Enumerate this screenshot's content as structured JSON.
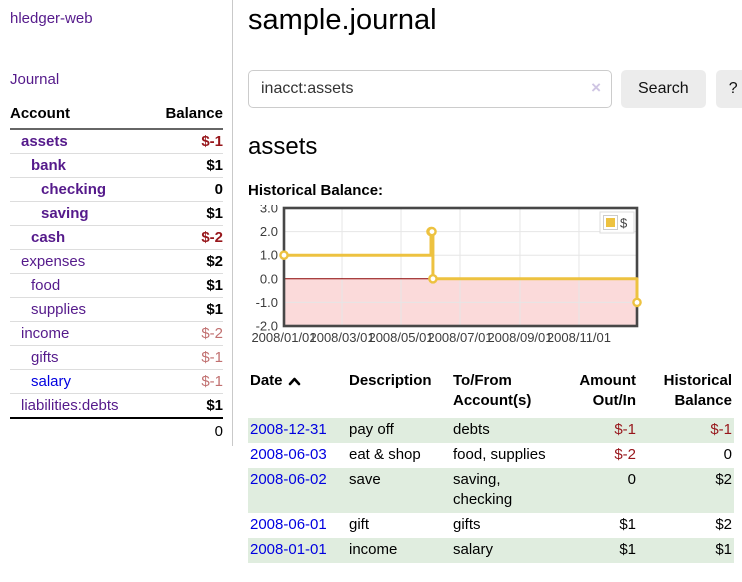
{
  "app": {
    "brand": "hledger-web",
    "nav_journal": "Journal"
  },
  "colors": {
    "link_purple": "#551a8b",
    "link_blue": "#0000e0",
    "negative_strong": "#97161b",
    "negative_soft": "#c17070",
    "row_green": "#e0eddf",
    "series_yellow": "#edc240",
    "negative_region_pink": "#fbdada",
    "zero_line": "#8b0000"
  },
  "sidebar": {
    "header": {
      "account": "Account",
      "balance": "Balance"
    },
    "accounts": [
      {
        "name": "assets",
        "balance": "$-1",
        "level": 0,
        "bold": true,
        "neg": "strong",
        "link": "purple"
      },
      {
        "name": "bank",
        "balance": "$1",
        "level": 1,
        "bold": true,
        "neg": "none",
        "link": "purple"
      },
      {
        "name": "checking",
        "balance": "0",
        "level": 2,
        "bold": true,
        "neg": "none",
        "link": "purple"
      },
      {
        "name": "saving",
        "balance": "$1",
        "level": 2,
        "bold": true,
        "neg": "none",
        "link": "purple"
      },
      {
        "name": "cash",
        "balance": "$-2",
        "level": 1,
        "bold": true,
        "neg": "strong",
        "link": "purple"
      },
      {
        "name": "expenses",
        "balance": "$2",
        "level": 0,
        "bold": false,
        "neg": "none",
        "link": "purple"
      },
      {
        "name": "food",
        "balance": "$1",
        "level": 1,
        "bold": false,
        "neg": "none",
        "link": "purple"
      },
      {
        "name": "supplies",
        "balance": "$1",
        "level": 1,
        "bold": false,
        "neg": "none",
        "link": "purple"
      },
      {
        "name": "income",
        "balance": "$-2",
        "level": 0,
        "bold": false,
        "neg": "soft",
        "link": "purple"
      },
      {
        "name": "gifts",
        "balance": "$-1",
        "level": 1,
        "bold": false,
        "neg": "soft",
        "link": "purple"
      },
      {
        "name": "salary",
        "balance": "$-1",
        "level": 1,
        "bold": false,
        "neg": "soft",
        "link": "blue"
      },
      {
        "name": "liabilities:debts",
        "balance": "$1",
        "level": 0,
        "bold": false,
        "neg": "none",
        "link": "purple"
      }
    ],
    "total": "0"
  },
  "main": {
    "title": "sample.journal",
    "search": {
      "value": "inacct:assets",
      "clear_icon": "×",
      "button_label": "Search",
      "help_label": "?"
    },
    "account_heading": "assets",
    "chart_label": "Historical Balance:"
  },
  "chart_data": {
    "type": "line",
    "style": "step",
    "title": "Historical Balance:",
    "legend": [
      {
        "label": "$",
        "color": "#edc240"
      }
    ],
    "legend_position": "top-right",
    "ylim": [
      -2,
      3
    ],
    "ytick_labels": [
      "3.0",
      "2.0",
      "1.0",
      "0.0",
      "-1.0",
      "-2.0"
    ],
    "yticks": [
      3,
      2,
      1,
      0,
      -1,
      -2
    ],
    "xtick_labels": [
      "2008/01/01",
      "2008/03/01",
      "2008/05/01",
      "2008/07/01",
      "2008/09/01",
      "2008/11/01"
    ],
    "xticks": [
      "2008-01-01",
      "2008-03-01",
      "2008-05-01",
      "2008-07-01",
      "2008-09-01",
      "2008-11-01"
    ],
    "x_domain": [
      "2008-01-01",
      "2008-12-31"
    ],
    "grid": true,
    "series": [
      {
        "name": "$",
        "color": "#edc240",
        "points": [
          [
            "2008-01-01",
            1
          ],
          [
            "2008-06-01",
            2
          ],
          [
            "2008-06-02",
            2
          ],
          [
            "2008-06-03",
            0
          ],
          [
            "2008-12-31",
            -1
          ]
        ]
      }
    ],
    "negative_region_fill": "#fbdada",
    "zero_line_color": "#8b0000"
  },
  "register": {
    "headers": [
      {
        "label": "Date",
        "sorted": "asc"
      },
      {
        "label": "Description"
      },
      {
        "label": "To/From Account(s)"
      },
      {
        "label": "Amount Out/In",
        "align": "right"
      },
      {
        "label": "Historical Balance",
        "align": "right"
      }
    ],
    "rows": [
      {
        "date": "2008-12-31",
        "description": "pay off",
        "accounts": "debts",
        "amount": "$-1",
        "amount_neg": true,
        "balance": "$-1",
        "balance_neg": true,
        "shaded": true
      },
      {
        "date": "2008-06-03",
        "description": "eat & shop",
        "accounts": "food, supplies",
        "amount": "$-2",
        "amount_neg": true,
        "balance": "0",
        "balance_neg": false,
        "shaded": false
      },
      {
        "date": "2008-06-02",
        "description": "save",
        "accounts": "saving, checking",
        "amount": "0",
        "amount_neg": false,
        "balance": "$2",
        "balance_neg": false,
        "shaded": true
      },
      {
        "date": "2008-06-01",
        "description": "gift",
        "accounts": "gifts",
        "amount": "$1",
        "amount_neg": false,
        "balance": "$2",
        "balance_neg": false,
        "shaded": false
      },
      {
        "date": "2008-01-01",
        "description": "income",
        "accounts": "salary",
        "amount": "$1",
        "amount_neg": false,
        "balance": "$1",
        "balance_neg": false,
        "shaded": true
      }
    ]
  }
}
